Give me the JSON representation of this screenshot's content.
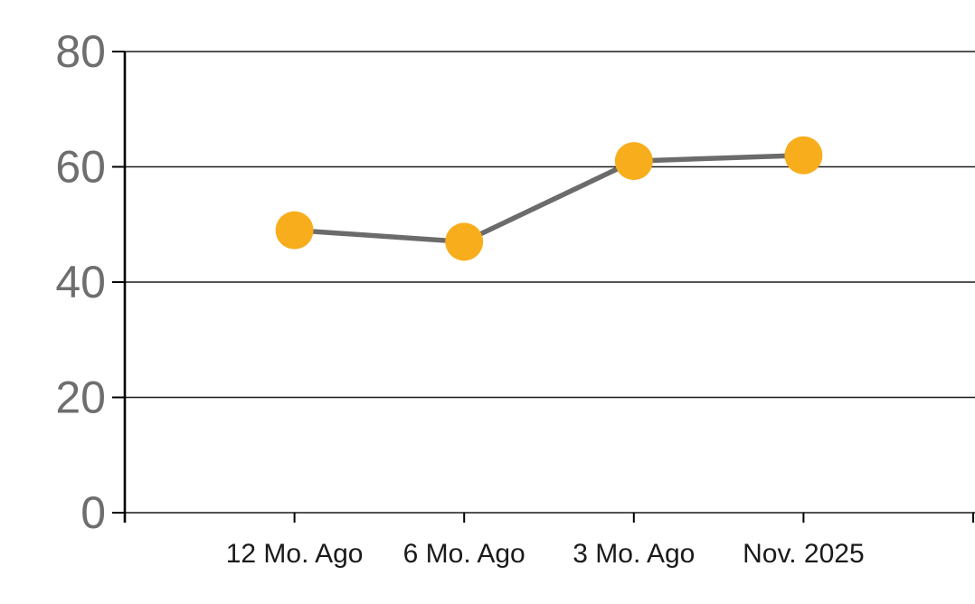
{
  "chart_data": {
    "type": "line",
    "title": "",
    "xlabel": "",
    "ylabel": "",
    "categories": [
      "12 Mo. Ago",
      "6 Mo. Ago",
      "3 Mo. Ago",
      "Nov. 2025"
    ],
    "series": [
      {
        "name": "series-1",
        "values": [
          49,
          47,
          61,
          62
        ]
      }
    ],
    "ylim": [
      0,
      80
    ],
    "yticks": [
      0,
      20,
      40,
      60,
      80
    ],
    "grid": "horizontal",
    "legend_position": "none",
    "colors": {
      "marker": "#F8AE1C",
      "line": "#6B6B6B",
      "axis": "#000000",
      "gridline": "#1A1A1A",
      "y_tick_label": "#6E6E6E",
      "x_tick_label": "#1A1A1A",
      "background": "#FFFFFF"
    }
  }
}
